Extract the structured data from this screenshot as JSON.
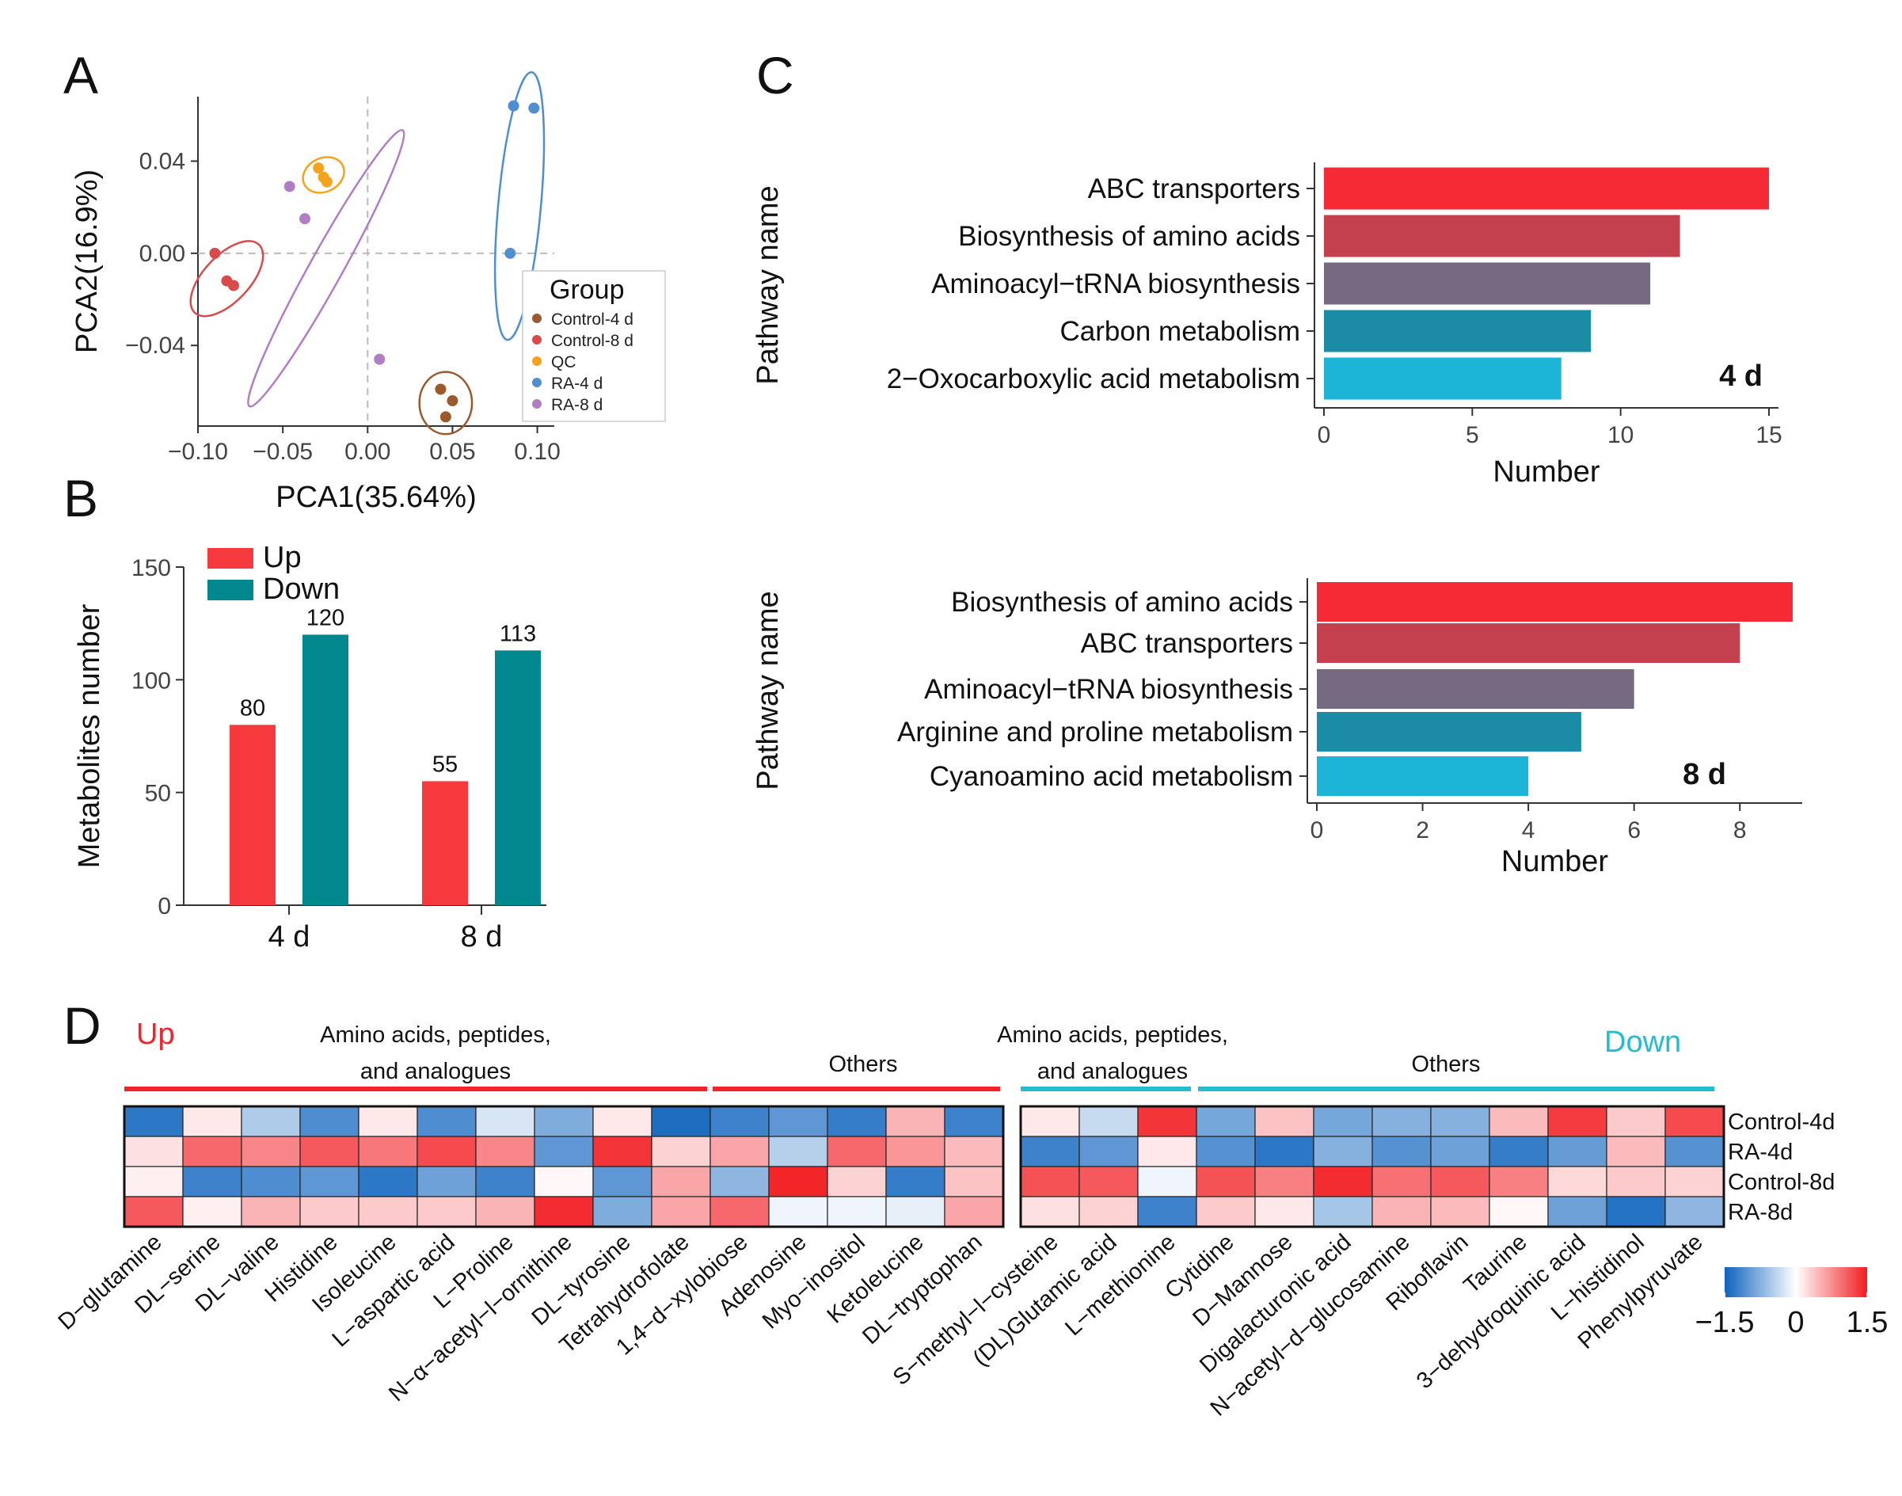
{
  "panel_labels": {
    "a": "A",
    "b": "B",
    "c": "C",
    "d": "D"
  },
  "colors": {
    "bar_palette": [
      "#f62a34",
      "#c5404f",
      "#756a82",
      "#1a8ca6",
      "#1cb5d8"
    ],
    "up": "#f5393d",
    "down": "#00888f",
    "up_text": "#f2232b",
    "down_text": "#25bccc",
    "hm_low": "#0d63bd",
    "hm_mid": "#ffffff",
    "hm_high": "#f21d22"
  },
  "chart_data": [
    {
      "id": "pca",
      "type": "scatter",
      "title": "",
      "xlabel": "PCA1(35.64%)",
      "ylabel": "PCA2(16.9%)",
      "xlim": [
        -0.1,
        0.11
      ],
      "ylim": [
        -0.075,
        0.068
      ],
      "xticks": [
        -0.1,
        -0.05,
        0.0,
        0.05,
        0.1
      ],
      "xtick_labels": [
        "−0.10",
        "−0.05",
        "0.00",
        "0.05",
        "0.10"
      ],
      "yticks": [
        0.04,
        0.0,
        -0.04
      ],
      "ytick_labels": [
        "0.04",
        "0.00",
        "−0.04"
      ],
      "legend_title": "Group",
      "legend_position": "right",
      "series": [
        {
          "name": "Control-4 d",
          "color": "#9a5a2e",
          "points": [
            [
              0.043,
              -0.059
            ],
            [
              0.05,
              -0.064
            ],
            [
              0.046,
              -0.071
            ]
          ]
        },
        {
          "name": "Control-8 d",
          "color": "#d94b4b",
          "points": [
            [
              -0.09,
              0.0
            ],
            [
              -0.083,
              -0.012
            ],
            [
              -0.079,
              -0.014
            ]
          ]
        },
        {
          "name": "QC",
          "color": "#f5a21d",
          "points": [
            [
              -0.029,
              0.037
            ],
            [
              -0.026,
              0.033
            ],
            [
              -0.024,
              0.031
            ]
          ]
        },
        {
          "name": "RA-4 d",
          "color": "#4f8ed1",
          "points": [
            [
              0.086,
              0.064
            ],
            [
              0.098,
              0.063
            ],
            [
              0.084,
              0.0
            ]
          ]
        },
        {
          "name": "RA-8 d",
          "color": "#b07ec2",
          "points": [
            [
              -0.046,
              0.029
            ],
            [
              -0.037,
              0.015
            ],
            [
              0.007,
              -0.046
            ]
          ]
        }
      ],
      "ellipses": [
        {
          "group": "Control-4 d",
          "center": [
            0.046,
            -0.065
          ],
          "radius": [
            0.0155,
            0.0135
          ],
          "angle": 0
        },
        {
          "group": "Control-8 d",
          "center": [
            -0.083,
            -0.011
          ],
          "radius": [
            0.024,
            0.011
          ],
          "angle": -38
        },
        {
          "group": "QC",
          "center": [
            -0.026,
            0.034
          ],
          "radius": [
            0.012,
            0.0075
          ],
          "angle": -20
        },
        {
          "group": "RA-4 d",
          "center": [
            0.0895,
            0.0205
          ],
          "radius": [
            0.0585,
            0.0125
          ],
          "angle": -83
        },
        {
          "group": "RA-8 d",
          "center": [
            -0.0245,
            -0.0065
          ],
          "radius": [
            0.075,
            0.0085
          ],
          "angle": -53
        }
      ]
    },
    {
      "id": "metabolites",
      "type": "bar",
      "title": "",
      "xlabel": "",
      "ylabel": "Metabolites number",
      "categories": [
        "4 d",
        "8 d"
      ],
      "ylim": [
        0,
        150
      ],
      "yticks": [
        0,
        50,
        100,
        150
      ],
      "legend_position": "top-left",
      "series": [
        {
          "name": "Up",
          "values": [
            80,
            55
          ],
          "labels": [
            "80",
            "55"
          ]
        },
        {
          "name": "Down",
          "values": [
            120,
            113
          ],
          "labels": [
            "120",
            "113"
          ]
        }
      ]
    },
    {
      "id": "pathway-4d",
      "type": "bar",
      "orientation": "horizontal",
      "title": "",
      "annotation": "4 d",
      "xlabel": "Number",
      "ylabel": "Pathway name",
      "xlim": [
        0,
        15
      ],
      "xticks": [
        0,
        5,
        10,
        15
      ],
      "categories": [
        "ABC transporters",
        "Biosynthesis of amino acids",
        "Aminoacyl−tRNA biosynthesis",
        "Carbon metabolism",
        "2−Oxocarboxylic acid metabolism"
      ],
      "values": [
        15,
        12,
        11,
        9,
        8
      ]
    },
    {
      "id": "pathway-8d",
      "type": "bar",
      "orientation": "horizontal",
      "title": "",
      "annotation": "8 d",
      "xlabel": "Number",
      "ylabel": "Pathway name",
      "xlim": [
        0,
        9
      ],
      "xticks": [
        0,
        2,
        4,
        6,
        8
      ],
      "categories": [
        "Biosynthesis of amino acids",
        "ABC transporters",
        "Aminoacyl−tRNA biosynthesis",
        "Arginine and proline metabolism",
        "Cyanoamino acid metabolism"
      ],
      "values": [
        9,
        8,
        6,
        5,
        4
      ]
    },
    {
      "id": "heatmap",
      "type": "heatmap",
      "title": "",
      "rows": [
        "Control-4d",
        "RA-4d",
        "Control-8d",
        "RA-8d"
      ],
      "range": [
        -1.5,
        1.5
      ],
      "legend_ticks": [
        "−1.5",
        "0",
        "1.5"
      ],
      "blocks": [
        {
          "direction": "Up",
          "direction_label": "Up",
          "category": "Amino acids, peptides,\nand analogues",
          "columns": [
            "D−glutamine",
            "DL−serine",
            "DL−valine",
            "Histidine",
            "Isoleucine",
            "L−aspartic acid",
            "L−Proline",
            "N−α−acetyl−l−ornithine",
            "DL−tyrosine",
            "Tetrahydrofolate"
          ],
          "values": [
            [
              -1.3,
              0.15,
              -0.5,
              -1.1,
              0.15,
              -1.1,
              -0.25,
              -0.8,
              0.15,
              -1.4
            ],
            [
              0.2,
              1.0,
              0.8,
              1.1,
              0.9,
              1.2,
              0.8,
              -1.0,
              1.35,
              0.3
            ],
            [
              0.1,
              -1.2,
              -1.1,
              -1.0,
              -1.3,
              -0.9,
              -1.2,
              0.05,
              -1.0,
              0.6
            ],
            [
              1.1,
              0.1,
              0.5,
              0.35,
              0.35,
              0.35,
              0.5,
              1.4,
              -0.8,
              0.6
            ]
          ]
        },
        {
          "direction": "Up",
          "category": "Others",
          "columns": [
            "1,4−d−xylobiose",
            "Adenosine",
            "Myo−inositol",
            "Ketoleucine",
            "DL−tryptophan"
          ],
          "values": [
            [
              -1.2,
              -1.0,
              -1.25,
              0.5,
              -1.2
            ],
            [
              0.6,
              -0.45,
              1.0,
              0.7,
              0.45
            ],
            [
              -0.7,
              1.45,
              0.3,
              -1.25,
              0.4
            ],
            [
              1.0,
              -0.1,
              -0.1,
              -0.15,
              0.6
            ]
          ]
        },
        {
          "direction": "Down",
          "category": "Amino acids, peptides,\nand analogues",
          "columns": [
            "S−methyl−l−cysteine",
            "(DL)Glutamic acid",
            "L−methionine"
          ],
          "values": [
            [
              0.15,
              -0.35,
              1.35
            ],
            [
              -1.2,
              -1.0,
              0.15
            ],
            [
              1.15,
              1.1,
              -0.1
            ],
            [
              0.2,
              0.3,
              -1.2
            ]
          ]
        },
        {
          "direction": "Down",
          "direction_label": "Down",
          "category": "Others",
          "columns": [
            "Cytidine",
            "D−Mannose",
            "Digalacturonic acid",
            "N−acetyl−d−glucosamine",
            "Riboflavin",
            "Taurine",
            "3−dehydroquinic acid",
            "L−histidinol",
            "Phenylpyruvate"
          ],
          "values": [
            [
              -0.85,
              0.4,
              -0.85,
              -0.75,
              -0.75,
              0.45,
              1.3,
              0.35,
              1.2
            ],
            [
              -1.05,
              -1.3,
              -0.75,
              -1.05,
              -0.9,
              -1.25,
              -0.95,
              0.45,
              -1.05
            ],
            [
              1.15,
              0.85,
              1.4,
              0.95,
              1.1,
              0.85,
              0.25,
              0.35,
              0.3
            ],
            [
              0.35,
              0.15,
              -0.55,
              0.5,
              0.45,
              0.05,
              -0.9,
              -1.35,
              -0.7
            ]
          ]
        }
      ]
    }
  ]
}
